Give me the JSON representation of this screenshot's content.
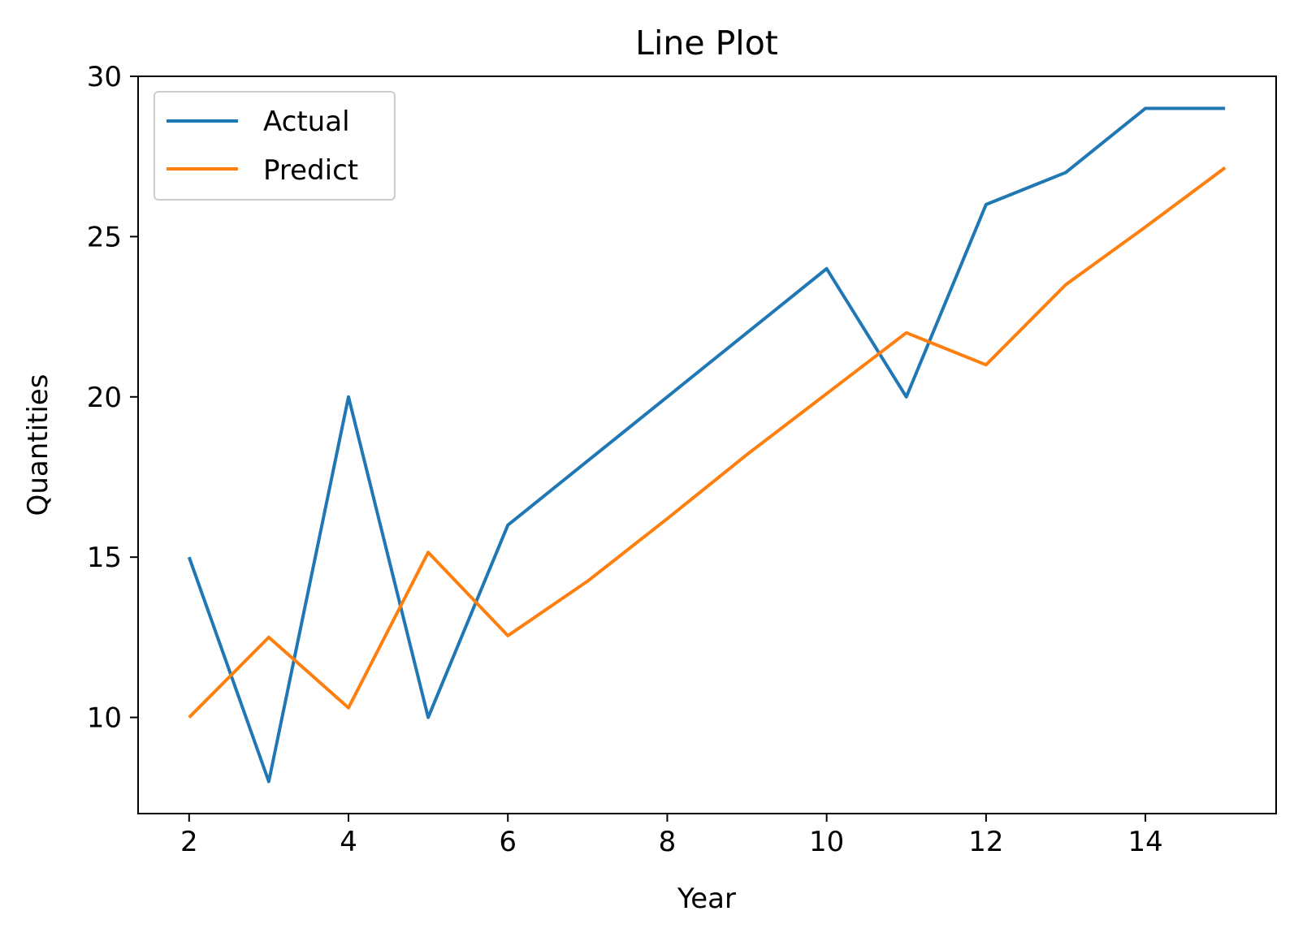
{
  "chart_data": {
    "type": "line",
    "title": "Line Plot",
    "xlabel": "Year",
    "ylabel": "Quantities",
    "xlim": [
      1.36,
      15.64
    ],
    "ylim": [
      7.0,
      30.0
    ],
    "xticks": [
      2,
      4,
      6,
      8,
      10,
      12,
      14
    ],
    "yticks": [
      10,
      15,
      20,
      25,
      30
    ],
    "grid": false,
    "legend_position": "top-left",
    "series": [
      {
        "name": "Actual",
        "color": "#1f77b4",
        "x": [
          2,
          3,
          4,
          5,
          6,
          7,
          8,
          9,
          10,
          11,
          12,
          13,
          14,
          15
        ],
        "y": [
          15,
          8,
          20,
          10,
          16,
          18,
          20,
          22,
          24,
          20,
          26,
          27,
          29,
          29
        ]
      },
      {
        "name": "Predict",
        "color": "#ff7f0e",
        "x": [
          2,
          3,
          4,
          5,
          6,
          7,
          8,
          9,
          10,
          11,
          12,
          13,
          14,
          15
        ],
        "y": [
          10.0,
          12.5,
          10.3,
          15.15,
          12.55,
          14.25,
          16.2,
          18.2,
          20.1,
          22.0,
          21.0,
          23.5,
          25.3,
          27.15
        ]
      }
    ]
  }
}
